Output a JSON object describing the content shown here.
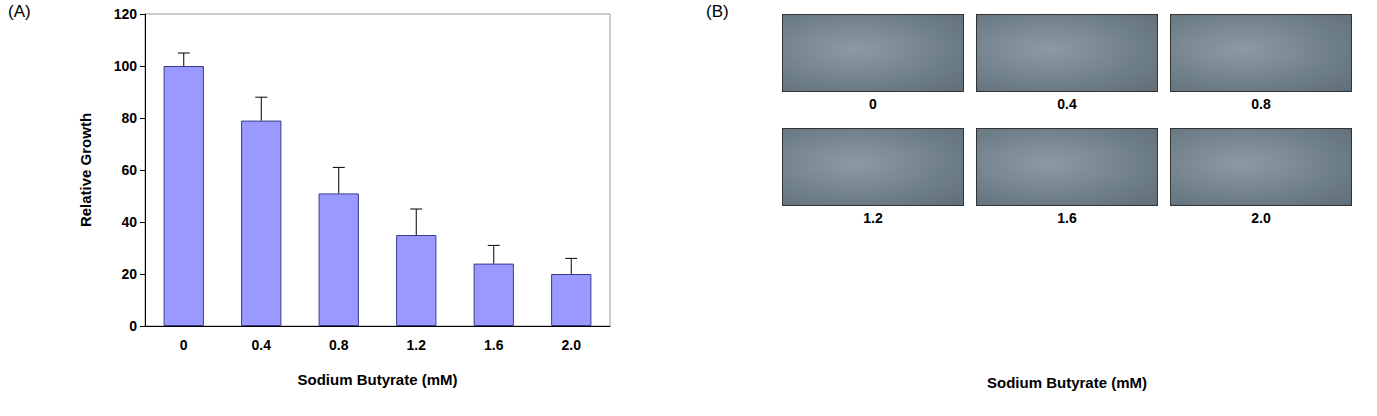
{
  "chart_data": {
    "type": "bar",
    "panel": "(A)",
    "categories": [
      "0",
      "0.4",
      "0.8",
      "1.2",
      "1.6",
      "2.0"
    ],
    "values": [
      100,
      79,
      51,
      35,
      24,
      20
    ],
    "errors": [
      5,
      9,
      10,
      10,
      7,
      6
    ],
    "color": "#9999ff",
    "xlabel": "Sodium Butyrate (mM)",
    "ylabel": "Relative Growth",
    "ylim": [
      0,
      120
    ],
    "yticks": [
      0,
      20,
      40,
      60,
      80,
      100,
      120
    ],
    "grid": false
  },
  "image_panel": {
    "panel": "(B)",
    "labels": [
      "0",
      "0.4",
      "0.8",
      "1.2",
      "1.6",
      "2.0"
    ],
    "xlabel": "Sodium Butyrate (mM)"
  }
}
